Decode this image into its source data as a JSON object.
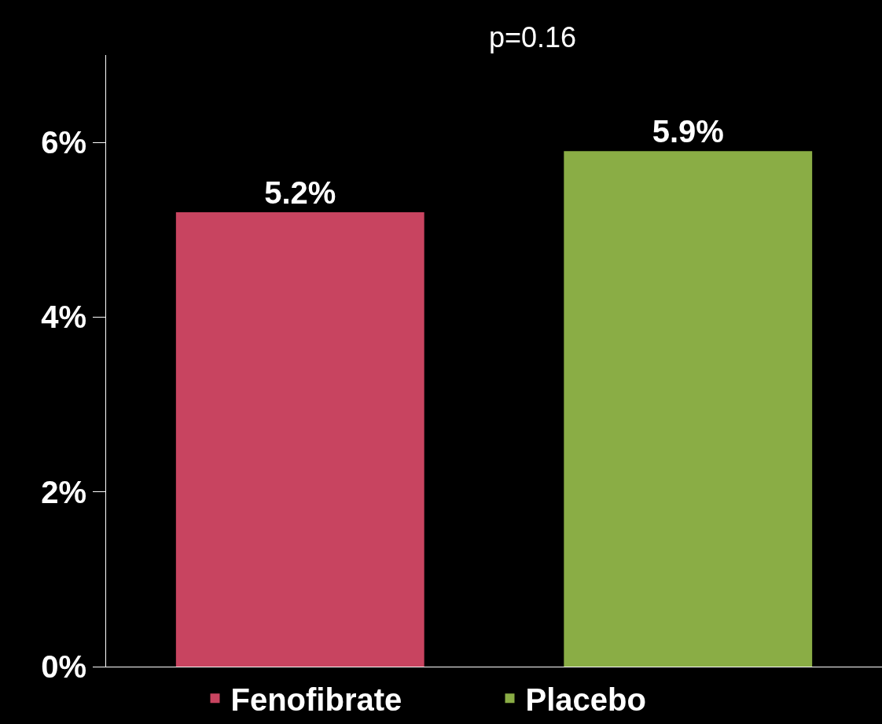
{
  "chart_data": {
    "type": "bar",
    "categories": [
      null,
      null
    ],
    "series": [
      {
        "name": "Fenofibrate",
        "color": "#c84460",
        "values": [
          5.2,
          null
        ],
        "value_labels": [
          "5.2%",
          null
        ]
      },
      {
        "name": "Placebo",
        "color": "#8aad45",
        "values": [
          null,
          5.9
        ],
        "value_labels": [
          null,
          "5.9%"
        ]
      }
    ],
    "ylim": [
      0,
      7
    ],
    "yticks": [
      {
        "value": 0,
        "label": "0%"
      },
      {
        "value": 2,
        "label": "2%"
      },
      {
        "value": 4,
        "label": "4%"
      },
      {
        "value": 6,
        "label": "6%"
      }
    ],
    "grid": false,
    "legend": "bottom",
    "annotations": [
      "p=0.16"
    ]
  }
}
